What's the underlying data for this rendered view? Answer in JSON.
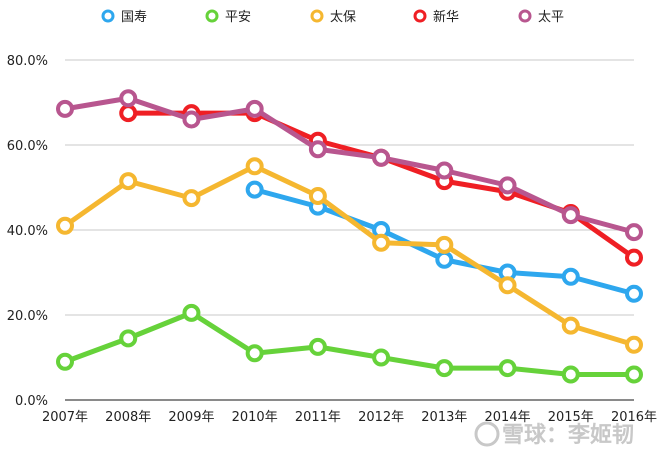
{
  "chart_data": {
    "type": "line",
    "title": "",
    "xlabel": "",
    "ylabel": "",
    "categories": [
      "2007年",
      "2008年",
      "2009年",
      "2010年",
      "2011年",
      "2012年",
      "2013年",
      "2014年",
      "2015年",
      "2016年"
    ],
    "ylim": [
      0,
      80
    ],
    "y_ticks": [
      "0.0%",
      "20.0%",
      "40.0%",
      "60.0%",
      "80.0%"
    ],
    "grid": true,
    "legend_position": "top",
    "series": [
      {
        "name": "国寿",
        "color": "#2ea7ee",
        "values": [
          null,
          null,
          null,
          49.5,
          45.5,
          40.0,
          33.0,
          30.0,
          29.0,
          25.0
        ]
      },
      {
        "name": "平安",
        "color": "#66d23a",
        "values": [
          9.0,
          14.5,
          20.5,
          11.0,
          12.5,
          10.0,
          7.5,
          7.5,
          6.0,
          6.0
        ]
      },
      {
        "name": "太保",
        "color": "#f5b730",
        "values": [
          41.0,
          51.5,
          47.5,
          55.0,
          48.0,
          37.0,
          36.5,
          27.0,
          17.5,
          13.0
        ]
      },
      {
        "name": "新华",
        "color": "#ef1f24",
        "values": [
          null,
          67.5,
          67.5,
          67.5,
          61.0,
          57.0,
          51.5,
          49.0,
          44.0,
          33.5
        ]
      },
      {
        "name": "太平",
        "color": "#b8568f",
        "values": [
          68.5,
          71.0,
          66.0,
          68.5,
          59.0,
          57.0,
          54.0,
          50.5,
          43.5,
          39.5
        ]
      }
    ]
  },
  "watermark": "雪球：李姬韧"
}
